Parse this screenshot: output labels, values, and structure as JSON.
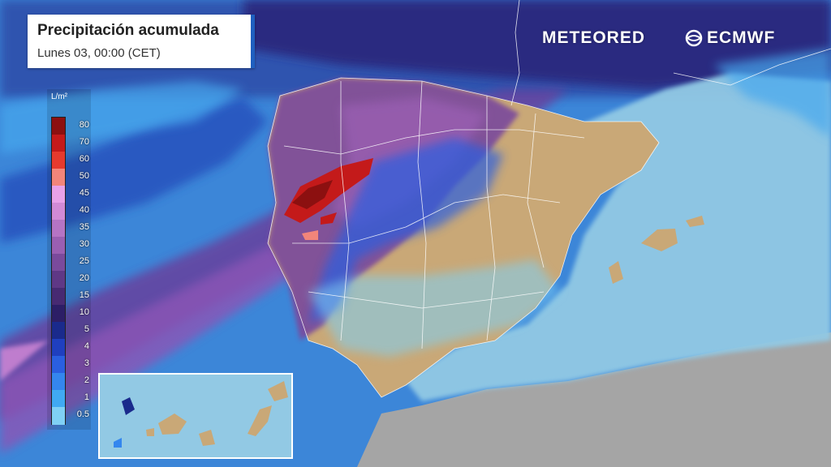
{
  "header": {
    "title": "Precipitación acumulada",
    "subtitle": "Lunes 03, 00:00 (CET)"
  },
  "logos": {
    "meteored": "METEORED",
    "ecmwf": "ECMWF"
  },
  "legend": {
    "unit": "L/m²",
    "levels": [
      {
        "label": "80",
        "color": "#8c1010"
      },
      {
        "label": "70",
        "color": "#c41a1a"
      },
      {
        "label": "60",
        "color": "#e53a2e"
      },
      {
        "label": "50",
        "color": "#f2857a"
      },
      {
        "label": "45",
        "color": "#e9a1e8"
      },
      {
        "label": "40",
        "color": "#d28ad6"
      },
      {
        "label": "35",
        "color": "#b574c4"
      },
      {
        "label": "30",
        "color": "#9a5fb2"
      },
      {
        "label": "25",
        "color": "#7a4a9c"
      },
      {
        "label": "20",
        "color": "#5f3886"
      },
      {
        "label": "15",
        "color": "#472a72"
      },
      {
        "label": "10",
        "color": "#2c1e66"
      },
      {
        "label": "5",
        "color": "#1a2a8c"
      },
      {
        "label": "4",
        "color": "#1f3fbf"
      },
      {
        "label": "3",
        "color": "#2a5fe0"
      },
      {
        "label": "2",
        "color": "#3486ee"
      },
      {
        "label": "1",
        "color": "#40a9f2"
      },
      {
        "label": "0.5",
        "color": "#7fd0f5"
      }
    ]
  },
  "map_colors": {
    "land_dry": "#c9a877",
    "sea_clear": "#92c9e4",
    "africa": "#a3a3a3",
    "border_lines": "#ffffff"
  }
}
